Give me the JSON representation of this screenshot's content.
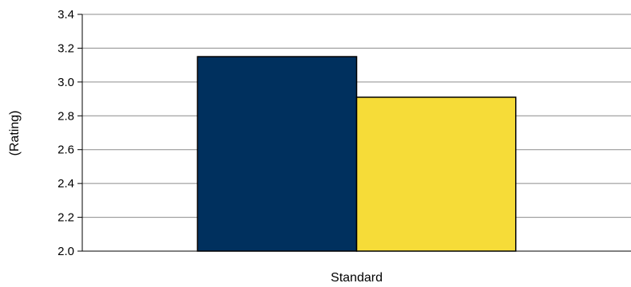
{
  "chart_data": {
    "type": "bar",
    "ylabel": "(Rating)",
    "categories": [
      "Standard"
    ],
    "series": [
      {
        "values": [
          3.15
        ],
        "color": "#00305E"
      },
      {
        "values": [
          2.91
        ],
        "color": "#F6DC38"
      }
    ],
    "ylim": [
      2.0,
      3.4
    ],
    "yticks": [
      "2.0",
      "2.2",
      "2.4",
      "2.6",
      "2.8",
      "3.0",
      "3.2",
      "3.4"
    ],
    "grid": true,
    "legend": "none"
  }
}
